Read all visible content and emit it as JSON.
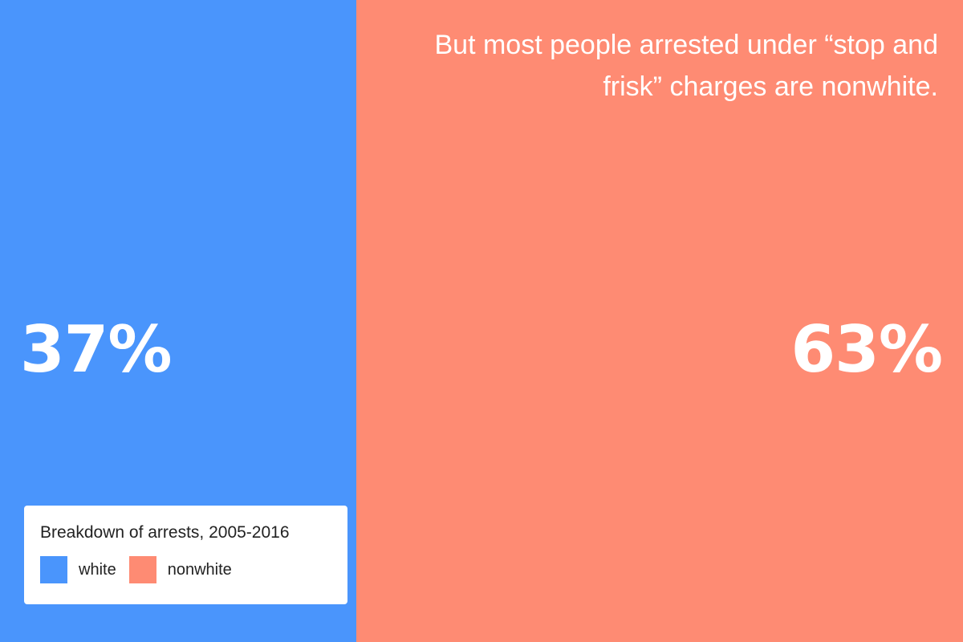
{
  "headline": "But most people arrested under “stop and frisk” charges are nonwhite.",
  "chart_data": {
    "type": "bar",
    "orientation": "stacked-horizontal-100",
    "title": "Breakdown of arrests, 2005-2016",
    "categories": [
      "white",
      "nonwhite"
    ],
    "values": [
      37,
      63
    ],
    "value_labels": [
      "37%",
      "63%"
    ],
    "colors": [
      "#4a95fc",
      "#fe8b73"
    ],
    "unit": "%",
    "legend_position": "bottom-left",
    "grid": false
  },
  "legend": {
    "title": "Breakdown of arrests, 2005-2016",
    "items": [
      {
        "label": "white",
        "color": "#4a95fc"
      },
      {
        "label": "nonwhite",
        "color": "#fe8b73"
      }
    ]
  }
}
